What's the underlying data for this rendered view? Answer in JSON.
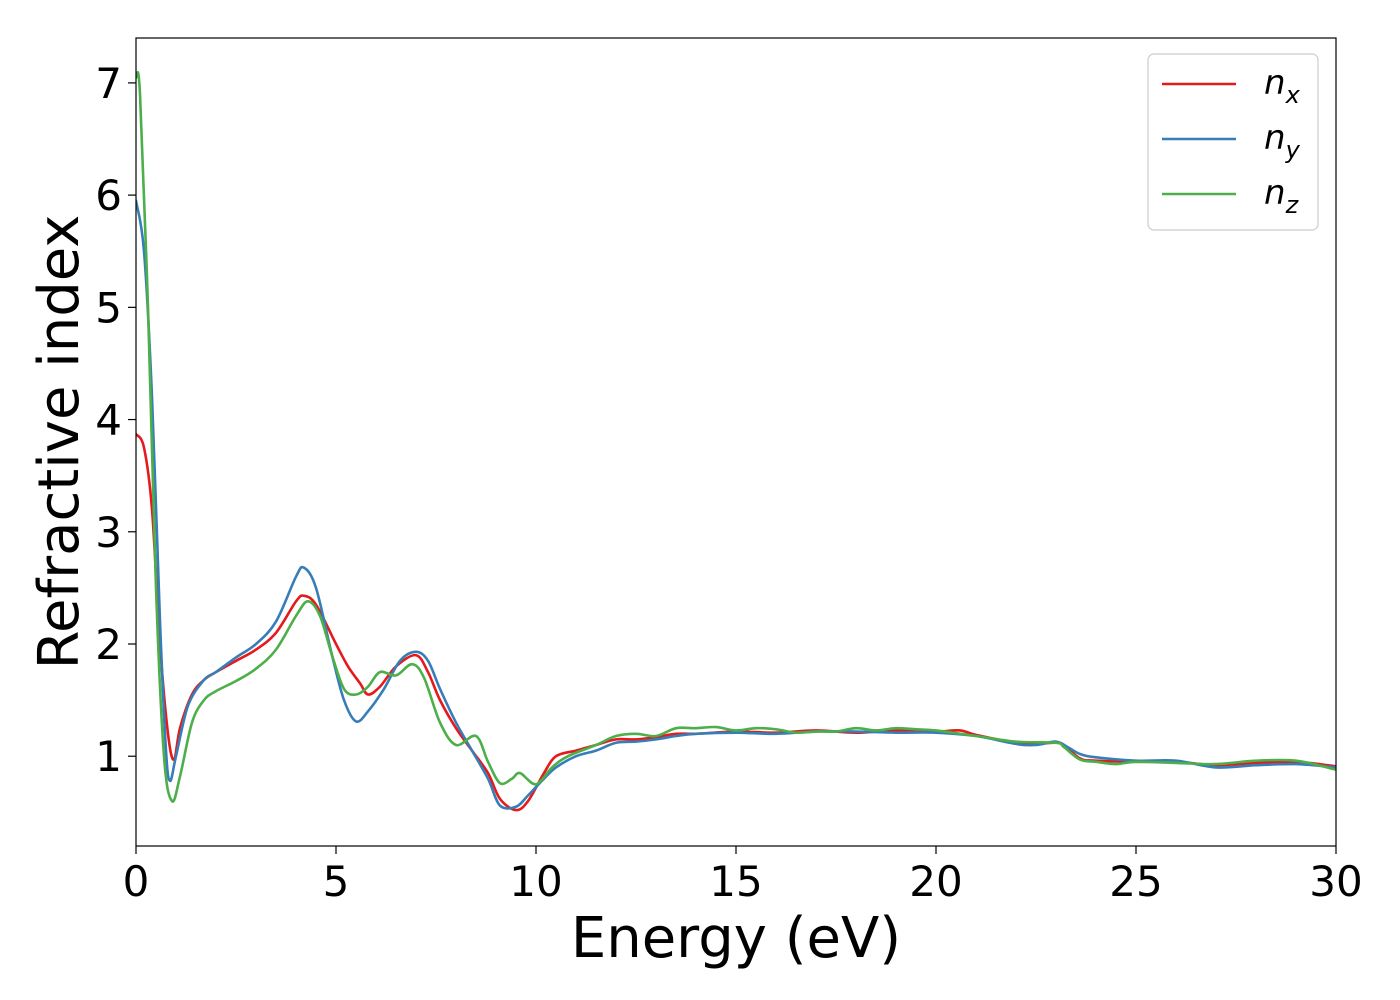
{
  "chart_data": {
    "type": "line",
    "title": "",
    "xlabel": "Energy (eV)",
    "ylabel": "Refractive index",
    "xlim": [
      0,
      30
    ],
    "ylim": [
      0.2,
      7.4
    ],
    "xticks": [
      0,
      5,
      10,
      15,
      20,
      25,
      30
    ],
    "yticks": [
      1,
      2,
      3,
      4,
      5,
      6,
      7
    ],
    "grid": false,
    "legend_position": "top-right",
    "series": [
      {
        "name": "n_x",
        "legend_base": "n",
        "legend_sub": "x",
        "color": "#e41a1c",
        "points": [
          [
            0,
            3.87
          ],
          [
            0.2,
            3.75
          ],
          [
            0.4,
            3.2
          ],
          [
            0.6,
            2.0
          ],
          [
            0.8,
            1.2
          ],
          [
            0.95,
            0.97
          ],
          [
            1.1,
            1.25
          ],
          [
            1.4,
            1.55
          ],
          [
            1.7,
            1.68
          ],
          [
            2.0,
            1.75
          ],
          [
            2.5,
            1.85
          ],
          [
            3.0,
            1.95
          ],
          [
            3.5,
            2.1
          ],
          [
            4.0,
            2.38
          ],
          [
            4.2,
            2.43
          ],
          [
            4.5,
            2.35
          ],
          [
            5.0,
            2.0
          ],
          [
            5.3,
            1.8
          ],
          [
            5.6,
            1.65
          ],
          [
            5.8,
            1.55
          ],
          [
            6.1,
            1.62
          ],
          [
            6.5,
            1.8
          ],
          [
            7.0,
            1.9
          ],
          [
            7.3,
            1.75
          ],
          [
            7.6,
            1.5
          ],
          [
            8.0,
            1.25
          ],
          [
            8.4,
            1.05
          ],
          [
            8.8,
            0.85
          ],
          [
            9.1,
            0.62
          ],
          [
            9.5,
            0.52
          ],
          [
            9.8,
            0.6
          ],
          [
            10.2,
            0.85
          ],
          [
            10.5,
            1.0
          ],
          [
            11.0,
            1.05
          ],
          [
            11.5,
            1.1
          ],
          [
            12.0,
            1.15
          ],
          [
            12.5,
            1.15
          ],
          [
            13.0,
            1.17
          ],
          [
            13.5,
            1.2
          ],
          [
            14,
            1.2
          ],
          [
            15,
            1.22
          ],
          [
            16,
            1.21
          ],
          [
            17,
            1.23
          ],
          [
            18,
            1.21
          ],
          [
            19,
            1.23
          ],
          [
            20,
            1.22
          ],
          [
            20.6,
            1.23
          ],
          [
            21,
            1.19
          ],
          [
            22,
            1.12
          ],
          [
            22.5,
            1.11
          ],
          [
            23,
            1.12
          ],
          [
            23.2,
            1.1
          ],
          [
            23.6,
            0.98
          ],
          [
            24,
            0.96
          ],
          [
            25,
            0.95
          ],
          [
            26,
            0.95
          ],
          [
            27,
            0.92
          ],
          [
            28,
            0.94
          ],
          [
            29,
            0.95
          ],
          [
            30,
            0.91
          ]
        ]
      },
      {
        "name": "n_y",
        "legend_base": "n",
        "legend_sub": "y",
        "color": "#377eb8",
        "points": [
          [
            0,
            5.95
          ],
          [
            0.2,
            5.5
          ],
          [
            0.4,
            4.2
          ],
          [
            0.6,
            2.2
          ],
          [
            0.75,
            1.05
          ],
          [
            0.85,
            0.78
          ],
          [
            1.0,
            1.0
          ],
          [
            1.3,
            1.45
          ],
          [
            1.7,
            1.68
          ],
          [
            2.0,
            1.75
          ],
          [
            2.5,
            1.88
          ],
          [
            3.0,
            2.0
          ],
          [
            3.5,
            2.2
          ],
          [
            4.0,
            2.6
          ],
          [
            4.2,
            2.68
          ],
          [
            4.5,
            2.5
          ],
          [
            4.9,
            1.9
          ],
          [
            5.2,
            1.5
          ],
          [
            5.5,
            1.31
          ],
          [
            5.8,
            1.4
          ],
          [
            6.2,
            1.6
          ],
          [
            6.6,
            1.85
          ],
          [
            7.0,
            1.93
          ],
          [
            7.3,
            1.85
          ],
          [
            7.6,
            1.6
          ],
          [
            8.0,
            1.3
          ],
          [
            8.4,
            1.05
          ],
          [
            8.8,
            0.8
          ],
          [
            9.1,
            0.56
          ],
          [
            9.5,
            0.55
          ],
          [
            9.8,
            0.65
          ],
          [
            10.2,
            0.8
          ],
          [
            10.5,
            0.9
          ],
          [
            11.0,
            1.0
          ],
          [
            11.5,
            1.05
          ],
          [
            12.0,
            1.12
          ],
          [
            12.5,
            1.13
          ],
          [
            13.0,
            1.15
          ],
          [
            13.5,
            1.18
          ],
          [
            14,
            1.2
          ],
          [
            15,
            1.21
          ],
          [
            16,
            1.2
          ],
          [
            17,
            1.22
          ],
          [
            18,
            1.22
          ],
          [
            19,
            1.21
          ],
          [
            20,
            1.21
          ],
          [
            21,
            1.18
          ],
          [
            22,
            1.11
          ],
          [
            22.5,
            1.1
          ],
          [
            23,
            1.13
          ],
          [
            23.3,
            1.08
          ],
          [
            23.6,
            1.02
          ],
          [
            24,
            0.99
          ],
          [
            25,
            0.96
          ],
          [
            26,
            0.96
          ],
          [
            27,
            0.9
          ],
          [
            28,
            0.92
          ],
          [
            29,
            0.93
          ],
          [
            30,
            0.9
          ]
        ]
      },
      {
        "name": "n_z",
        "legend_base": "n",
        "legend_sub": "z",
        "color": "#4daf4a",
        "points": [
          [
            0,
            7.05
          ],
          [
            0.1,
            6.9
          ],
          [
            0.3,
            5.0
          ],
          [
            0.5,
            2.5
          ],
          [
            0.7,
            1.0
          ],
          [
            0.9,
            0.6
          ],
          [
            1.1,
            0.82
          ],
          [
            1.4,
            1.3
          ],
          [
            1.7,
            1.5
          ],
          [
            2.0,
            1.58
          ],
          [
            2.5,
            1.67
          ],
          [
            3.0,
            1.78
          ],
          [
            3.5,
            1.95
          ],
          [
            4.0,
            2.25
          ],
          [
            4.3,
            2.38
          ],
          [
            4.6,
            2.25
          ],
          [
            4.9,
            1.9
          ],
          [
            5.2,
            1.6
          ],
          [
            5.5,
            1.55
          ],
          [
            5.8,
            1.62
          ],
          [
            6.1,
            1.75
          ],
          [
            6.5,
            1.72
          ],
          [
            6.9,
            1.82
          ],
          [
            7.2,
            1.7
          ],
          [
            7.6,
            1.3
          ],
          [
            8.0,
            1.1
          ],
          [
            8.5,
            1.18
          ],
          [
            8.8,
            0.95
          ],
          [
            9.1,
            0.76
          ],
          [
            9.4,
            0.8
          ],
          [
            9.6,
            0.85
          ],
          [
            10.0,
            0.75
          ],
          [
            10.4,
            0.9
          ],
          [
            10.8,
            1.0
          ],
          [
            11.5,
            1.1
          ],
          [
            12.0,
            1.18
          ],
          [
            12.5,
            1.2
          ],
          [
            13.0,
            1.18
          ],
          [
            13.5,
            1.25
          ],
          [
            14,
            1.25
          ],
          [
            14.5,
            1.26
          ],
          [
            15,
            1.23
          ],
          [
            15.5,
            1.25
          ],
          [
            16,
            1.24
          ],
          [
            16.5,
            1.21
          ],
          [
            17,
            1.22
          ],
          [
            17.5,
            1.22
          ],
          [
            18,
            1.25
          ],
          [
            18.5,
            1.23
          ],
          [
            19,
            1.25
          ],
          [
            19.5,
            1.24
          ],
          [
            20,
            1.23
          ],
          [
            21,
            1.18
          ],
          [
            22,
            1.13
          ],
          [
            23,
            1.12
          ],
          [
            23.2,
            1.08
          ],
          [
            23.6,
            0.97
          ],
          [
            24,
            0.95
          ],
          [
            24.5,
            0.93
          ],
          [
            25,
            0.95
          ],
          [
            26,
            0.94
          ],
          [
            27,
            0.93
          ],
          [
            28,
            0.96
          ],
          [
            29,
            0.96
          ],
          [
            30,
            0.88
          ]
        ]
      }
    ]
  }
}
